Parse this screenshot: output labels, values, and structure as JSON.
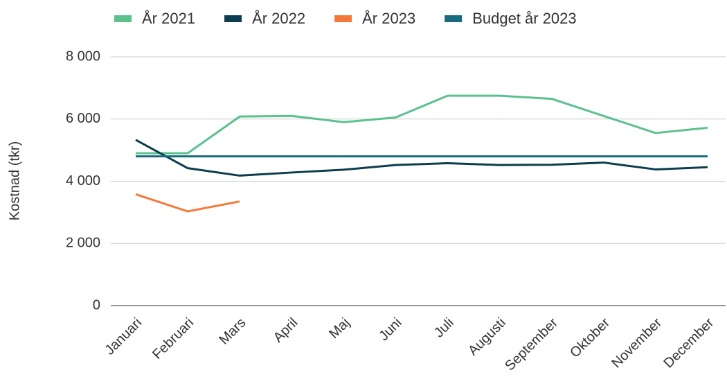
{
  "chart_data": {
    "type": "line",
    "y_label": "Kostnad (tkr)",
    "categories": [
      "Januari",
      "Februari",
      "Mars",
      "April",
      "Maj",
      "Juni",
      "Juli",
      "Augusti",
      "September",
      "Oktober",
      "November",
      "December"
    ],
    "series": [
      {
        "name": "År 2021",
        "color": "#5ac18e",
        "values": [
          4900,
          4900,
          6080,
          6100,
          5900,
          6050,
          6750,
          6750,
          6650,
          6100,
          5550,
          5720
        ]
      },
      {
        "name": "År 2022",
        "color": "#0b3d4f",
        "values": [
          5330,
          4420,
          4180,
          4280,
          4370,
          4520,
          4580,
          4520,
          4530,
          4600,
          4380,
          4450
        ]
      },
      {
        "name": "År 2023",
        "color": "#f47a3b",
        "values": [
          3580,
          3030,
          3350,
          null,
          null,
          null,
          null,
          null,
          null,
          null,
          null,
          null
        ]
      },
      {
        "name": "Budget år 2023",
        "color": "#176b7d",
        "values": [
          4800,
          4800,
          4800,
          4800,
          4800,
          4800,
          4800,
          4800,
          4800,
          4800,
          4800,
          4800
        ]
      }
    ],
    "ylim": [
      0,
      8000
    ],
    "yticks": [
      0,
      {
        "value": 2000,
        "label": "2 000"
      },
      {
        "value": 4000,
        "label": "4 000"
      },
      {
        "value": 6000,
        "label": "6 000"
      },
      {
        "value": 8000,
        "label": "8 000"
      }
    ],
    "grid": true,
    "legend": "top"
  }
}
